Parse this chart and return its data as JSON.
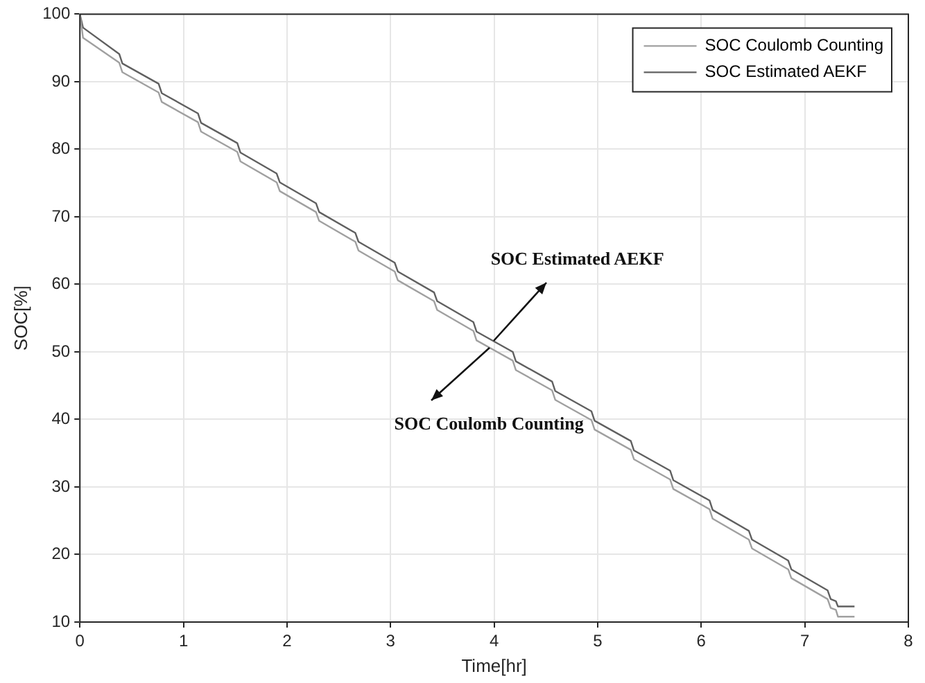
{
  "chart_data": {
    "type": "line",
    "xlabel": "Time[hr]",
    "ylabel": "SOC[%]",
    "xlim": [
      0,
      8
    ],
    "xticks": [
      0,
      1,
      2,
      3,
      4,
      5,
      6,
      7,
      8
    ],
    "ylim": [
      10,
      100
    ],
    "yticks": [
      10,
      20,
      30,
      40,
      50,
      60,
      70,
      80,
      90,
      100
    ],
    "grid": true,
    "legend": "top right",
    "marker": "none",
    "line_style": "solid",
    "series": [
      {
        "name": "SOC Coulomb Counting",
        "color": "#a0a0a0",
        "x": [
          0,
          0.03,
          0.38,
          0.41,
          0.76,
          0.79,
          1.14,
          1.17,
          1.52,
          1.55,
          1.9,
          1.93,
          2.28,
          2.31,
          2.66,
          2.69,
          3.04,
          3.07,
          3.42,
          3.45,
          3.8,
          3.83,
          4.18,
          4.21,
          4.56,
          4.59,
          4.94,
          4.97,
          5.32,
          5.35,
          5.7,
          5.73,
          6.08,
          6.11,
          6.46,
          6.49,
          6.84,
          6.87,
          7.22,
          7.25,
          7.3,
          7.32,
          7.48
        ],
        "values": [
          100,
          96.5,
          92.8,
          91.4,
          88.4,
          87.0,
          84.0,
          82.6,
          79.6,
          78.2,
          75.1,
          73.8,
          70.7,
          69.4,
          66.3,
          65.0,
          61.9,
          60.6,
          57.5,
          56.2,
          53.1,
          51.7,
          48.7,
          47.3,
          44.3,
          42.9,
          39.9,
          38.5,
          35.5,
          34.1,
          31.1,
          29.7,
          26.7,
          25.3,
          22.2,
          20.9,
          17.8,
          16.5,
          13.4,
          12.1,
          11.8,
          10.8,
          10.8
        ]
      },
      {
        "name": "SOC Estimated AEKF",
        "color": "#606060",
        "x": [
          0,
          0.03,
          0.38,
          0.41,
          0.76,
          0.79,
          1.14,
          1.17,
          1.52,
          1.55,
          1.9,
          1.93,
          2.28,
          2.31,
          2.66,
          2.69,
          3.04,
          3.07,
          3.42,
          3.45,
          3.8,
          3.83,
          4.18,
          4.21,
          4.56,
          4.59,
          4.94,
          4.97,
          5.32,
          5.35,
          5.7,
          5.73,
          6.08,
          6.11,
          6.46,
          6.49,
          6.84,
          6.87,
          7.22,
          7.25,
          7.3,
          7.32,
          7.48
        ],
        "values": [
          100,
          98.0,
          94.1,
          92.7,
          89.7,
          88.3,
          85.3,
          83.9,
          80.9,
          79.5,
          76.4,
          75.1,
          72.0,
          70.7,
          67.6,
          66.3,
          63.2,
          61.9,
          58.8,
          57.5,
          54.4,
          53.0,
          50.0,
          48.6,
          45.6,
          44.2,
          41.2,
          39.8,
          36.8,
          35.4,
          32.4,
          31.0,
          28.0,
          26.6,
          23.5,
          22.2,
          19.1,
          17.8,
          14.7,
          13.4,
          13.1,
          12.3,
          12.3
        ]
      }
    ],
    "annotations": [
      {
        "text": "SOC Estimated AEKF",
        "x": 4.0,
        "y": 51.7
      },
      {
        "text": "SOC Coulomb Counting",
        "x": 3.95,
        "y": 50.7
      }
    ]
  }
}
